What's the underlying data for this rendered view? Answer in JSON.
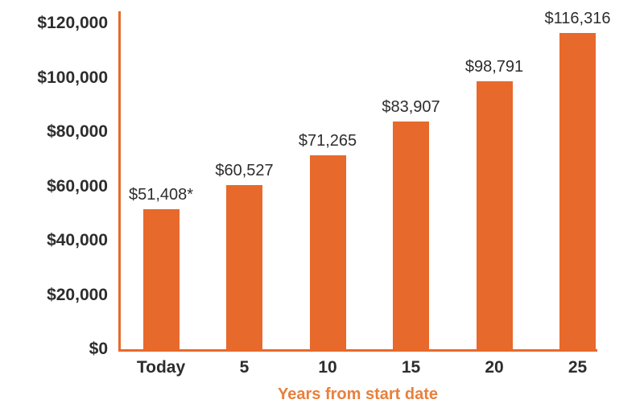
{
  "chart_data": {
    "type": "bar",
    "title": "",
    "xlabel": "Years from start date",
    "ylabel": "",
    "categories": [
      "Today",
      "5",
      "10",
      "15",
      "20",
      "25"
    ],
    "values": [
      51408,
      60527,
      71265,
      83907,
      98791,
      116316
    ],
    "bar_labels": [
      "$51,408*",
      "$60,527",
      "$71,265",
      "$83,907",
      "$98,791",
      "$116,316"
    ],
    "y_ticks": [
      {
        "label": "$0",
        "value": 0
      },
      {
        "label": "$20,000",
        "value": 20000
      },
      {
        "label": "$40,000",
        "value": 40000
      },
      {
        "label": "$60,000",
        "value": 60000
      },
      {
        "label": "$80,000",
        "value": 80000
      },
      {
        "label": "$100,000",
        "value": 100000
      },
      {
        "label": "$120,000",
        "value": 120000
      }
    ],
    "ylim": [
      0,
      120000
    ],
    "grid": false,
    "legend": "none",
    "colors": {
      "bar": "#E7692B",
      "axis": "#E7692B",
      "tick_text": "#2D2D2D",
      "value_text": "#2D2D2D",
      "xlabel_text": "#E8803C",
      "background": "#FFFFFF"
    }
  }
}
